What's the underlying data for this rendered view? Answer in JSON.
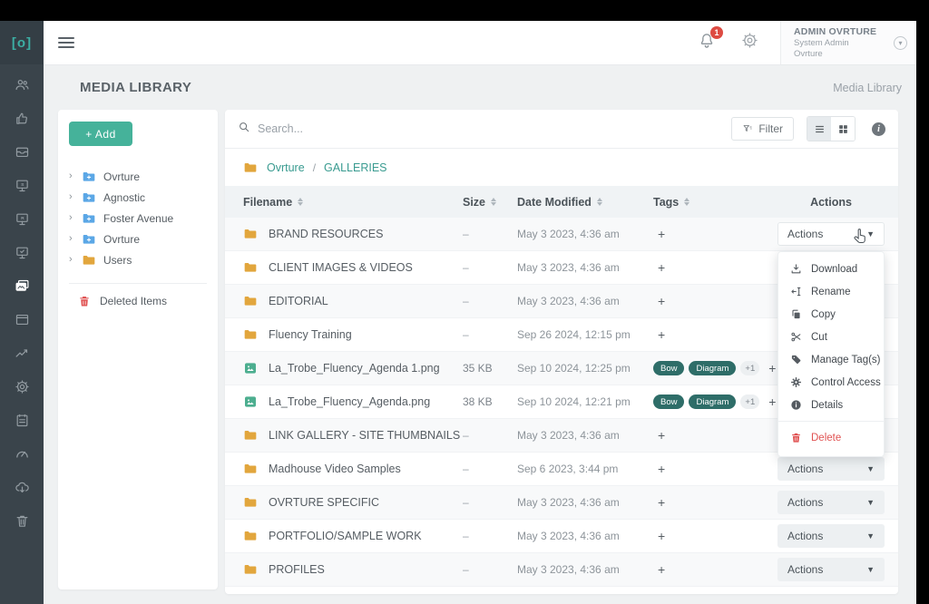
{
  "topbar": {
    "logo_text": "[o]",
    "notification_count": "1",
    "user_name": "ADMIN OVRTURE",
    "user_role": "System Admin",
    "user_org": "Ovrture"
  },
  "page": {
    "title": "MEDIA LIBRARY",
    "breadcrumb_right": "Media Library"
  },
  "sidebar_icons": [
    "users",
    "thumbs-up",
    "archive",
    "screen-s",
    "screen-r",
    "screen-check",
    "media-gallery",
    "window",
    "analytics",
    "settings",
    "tasks",
    "gauge",
    "cloud-download",
    "trash"
  ],
  "left_panel": {
    "add_button_label": "+  Add",
    "tree": [
      {
        "label": "Ovrture",
        "folder_color": "blue"
      },
      {
        "label": "Agnostic",
        "folder_color": "blue"
      },
      {
        "label": "Foster Avenue",
        "folder_color": "blue"
      },
      {
        "label": "Ovrture",
        "folder_color": "blue"
      },
      {
        "label": "Users",
        "folder_color": "yellow"
      }
    ],
    "deleted_items_label": "Deleted Items"
  },
  "toolbar": {
    "search_placeholder": "Search...",
    "filter_label": "Filter"
  },
  "path_breadcrumb": {
    "root": "Ovrture",
    "separator": "/",
    "current": "GALLERIES"
  },
  "table": {
    "columns": [
      "Filename",
      "Size",
      "Date Modified",
      "Tags",
      "Actions"
    ],
    "actions_button_label": "Actions",
    "add_tag_symbol": "+",
    "rows": [
      {
        "type": "folder",
        "name": "BRAND RESOURCES",
        "size": "–",
        "date": "May 3 2023, 4:36 am",
        "tags": [],
        "more": "",
        "actions_open": true
      },
      {
        "type": "folder",
        "name": "CLIENT IMAGES & VIDEOS",
        "size": "–",
        "date": "May 3 2023, 4:36 am",
        "tags": [],
        "more": ""
      },
      {
        "type": "folder",
        "name": "EDITORIAL",
        "size": "–",
        "date": "May 3 2023, 4:36 am",
        "tags": [],
        "more": ""
      },
      {
        "type": "folder",
        "name": "Fluency Training",
        "size": "–",
        "date": "Sep 26 2024, 12:15 pm",
        "tags": [],
        "more": ""
      },
      {
        "type": "image",
        "name": "La_Trobe_Fluency_Agenda 1.png",
        "size": "35 KB",
        "date": "Sep 10 2024, 12:25 pm",
        "tags": [
          "Bow",
          "Diagram"
        ],
        "more": "+1"
      },
      {
        "type": "image",
        "name": "La_Trobe_Fluency_Agenda.png",
        "size": "38 KB",
        "date": "Sep 10 2024, 12:21 pm",
        "tags": [
          "Bow",
          "Diagram"
        ],
        "more": "+1"
      },
      {
        "type": "folder",
        "name": "LINK GALLERY - SITE THUMBNAILS",
        "size": "–",
        "date": "May 3 2023, 4:36 am",
        "tags": [],
        "more": ""
      },
      {
        "type": "folder",
        "name": "Madhouse Video Samples",
        "size": "–",
        "date": "Sep 6 2023, 3:44 pm",
        "tags": [],
        "more": ""
      },
      {
        "type": "folder",
        "name": "OVRTURE SPECIFIC",
        "size": "–",
        "date": "May 3 2023, 4:36 am",
        "tags": [],
        "more": ""
      },
      {
        "type": "folder",
        "name": "PORTFOLIO/SAMPLE WORK",
        "size": "–",
        "date": "May 3 2023, 4:36 am",
        "tags": [],
        "more": ""
      },
      {
        "type": "folder",
        "name": "PROFILES",
        "size": "–",
        "date": "May 3 2023, 4:36 am",
        "tags": [],
        "more": ""
      }
    ]
  },
  "actions_menu": {
    "items": [
      {
        "label": "Download",
        "icon": "download-icon"
      },
      {
        "label": "Rename",
        "icon": "rename-icon"
      },
      {
        "label": "Copy",
        "icon": "copy-icon"
      },
      {
        "label": "Cut",
        "icon": "cut-icon"
      },
      {
        "label": "Manage Tag(s)",
        "icon": "tag-icon"
      },
      {
        "label": "Control Access",
        "icon": "gear-icon"
      },
      {
        "label": "Details",
        "icon": "info-icon"
      }
    ],
    "delete_item": {
      "label": "Delete",
      "icon": "trash-icon"
    }
  },
  "colors": {
    "accent_teal": "#3caea3",
    "sidebar_bg": "#3a444b",
    "tag_pill": "#2e6d68",
    "danger_red": "#e05252",
    "folder_yellow": "#e2a63d",
    "folder_blue": "#5ba7e6",
    "file_green": "#4cae8f",
    "badge_red": "#dd4b42"
  }
}
